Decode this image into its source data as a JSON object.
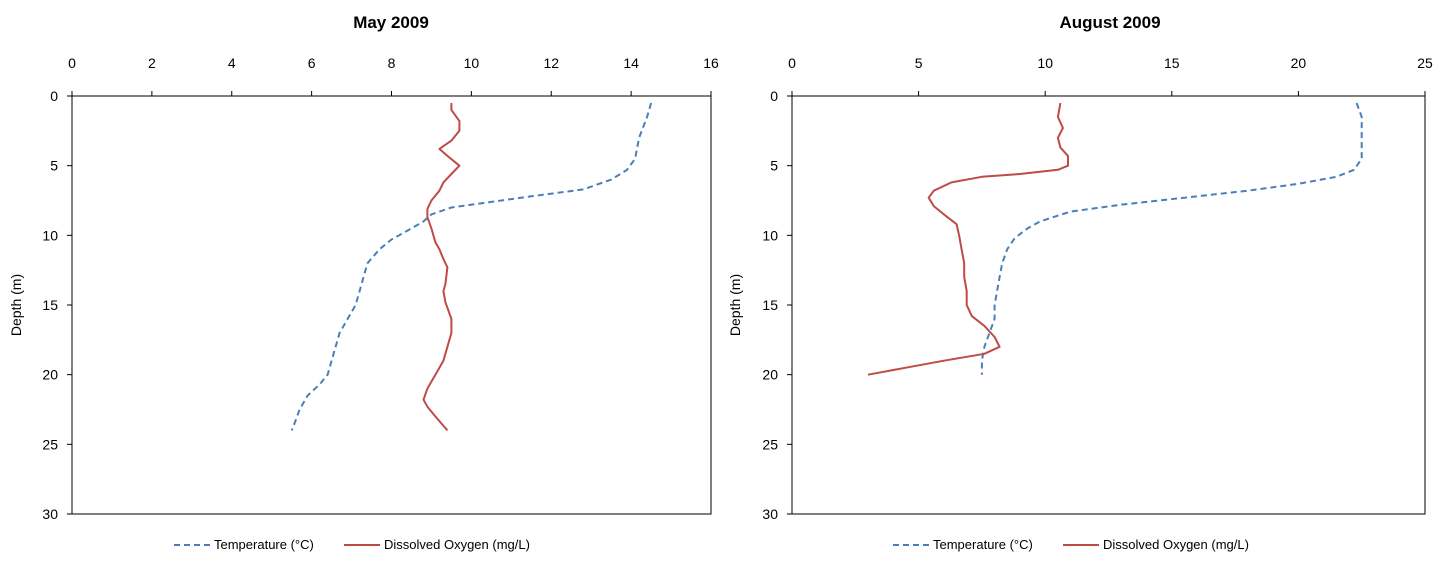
{
  "chart_data": [
    {
      "type": "line",
      "title": "May 2009",
      "ylabel": "Depth (m)",
      "xlabel": "",
      "xlim": [
        0,
        16
      ],
      "ylim": [
        0,
        30
      ],
      "x_axis_position": "top",
      "y_inverted": true,
      "xticks": [
        "0",
        "2",
        "4",
        "6",
        "8",
        "10",
        "12",
        "14",
        "16"
      ],
      "yticks": [
        "0",
        "5",
        "10",
        "15",
        "20",
        "25",
        "30"
      ],
      "grid": false,
      "legend_position": "bottom",
      "series": [
        {
          "name": "Temperature (°C)",
          "style": "dashed",
          "color": "#4a7ebb",
          "points": [
            [
              14.5,
              0.5
            ],
            [
              14.4,
              1.5
            ],
            [
              14.2,
              3
            ],
            [
              14.1,
              4.5
            ],
            [
              13.9,
              5.3
            ],
            [
              13.5,
              6
            ],
            [
              12.8,
              6.7
            ],
            [
              11.5,
              7.2
            ],
            [
              10.5,
              7.6
            ],
            [
              9.5,
              8
            ],
            [
              9.0,
              8.5
            ],
            [
              8.8,
              9
            ],
            [
              8.5,
              9.5
            ],
            [
              8.0,
              10.3
            ],
            [
              7.7,
              11
            ],
            [
              7.4,
              12
            ],
            [
              7.3,
              13
            ],
            [
              7.2,
              14
            ],
            [
              7.1,
              15
            ],
            [
              6.9,
              16
            ],
            [
              6.7,
              17
            ],
            [
              6.6,
              18
            ],
            [
              6.5,
              19
            ],
            [
              6.4,
              20
            ],
            [
              6.2,
              20.7
            ],
            [
              5.9,
              21.5
            ],
            [
              5.7,
              22.5
            ],
            [
              5.6,
              23.3
            ],
            [
              5.5,
              24
            ]
          ]
        },
        {
          "name": "Dissolved Oxygen (mg/L)",
          "style": "solid",
          "color": "#be4b48",
          "points": [
            [
              9.5,
              0.5
            ],
            [
              9.5,
              1
            ],
            [
              9.7,
              1.8
            ],
            [
              9.7,
              2.5
            ],
            [
              9.5,
              3.2
            ],
            [
              9.2,
              3.8
            ],
            [
              9.4,
              4.3
            ],
            [
              9.7,
              5
            ],
            [
              9.5,
              5.6
            ],
            [
              9.3,
              6.2
            ],
            [
              9.2,
              6.8
            ],
            [
              9.0,
              7.5
            ],
            [
              8.9,
              8.1
            ],
            [
              8.9,
              8.7
            ],
            [
              9.0,
              9.5
            ],
            [
              9.1,
              10.5
            ],
            [
              9.2,
              11
            ],
            [
              9.3,
              11.7
            ],
            [
              9.4,
              12.3
            ],
            [
              9.35,
              13.5
            ],
            [
              9.3,
              14
            ],
            [
              9.35,
              14.8
            ],
            [
              9.5,
              16
            ],
            [
              9.5,
              17
            ],
            [
              9.4,
              18
            ],
            [
              9.3,
              19
            ],
            [
              9.1,
              20
            ],
            [
              8.9,
              21
            ],
            [
              8.8,
              21.8
            ],
            [
              8.9,
              22.3
            ],
            [
              9.1,
              23
            ],
            [
              9.4,
              24
            ]
          ]
        }
      ]
    },
    {
      "type": "line",
      "title": "August 2009",
      "ylabel": "Depth (m)",
      "xlabel": "",
      "xlim": [
        0,
        25
      ],
      "ylim": [
        0,
        30
      ],
      "x_axis_position": "top",
      "y_inverted": true,
      "xticks": [
        "0",
        "5",
        "10",
        "15",
        "20",
        "25"
      ],
      "yticks": [
        "0",
        "5",
        "10",
        "15",
        "20",
        "25",
        "30"
      ],
      "grid": false,
      "legend_position": "bottom",
      "series": [
        {
          "name": "Temperature (°C)",
          "style": "dashed",
          "color": "#4a7ebb",
          "points": [
            [
              22.3,
              0.5
            ],
            [
              22.5,
              1.5
            ],
            [
              22.5,
              3
            ],
            [
              22.5,
              4.5
            ],
            [
              22.2,
              5.3
            ],
            [
              21.5,
              5.8
            ],
            [
              20.0,
              6.3
            ],
            [
              18.0,
              6.8
            ],
            [
              15.5,
              7.3
            ],
            [
              13.0,
              7.8
            ],
            [
              11.0,
              8.3
            ],
            [
              9.8,
              9
            ],
            [
              9.3,
              9.5
            ],
            [
              8.8,
              10.2
            ],
            [
              8.5,
              11
            ],
            [
              8.3,
              12
            ],
            [
              8.2,
              13
            ],
            [
              8.1,
              14
            ],
            [
              8.0,
              15
            ],
            [
              8.0,
              16
            ],
            [
              7.8,
              17
            ],
            [
              7.6,
              18
            ],
            [
              7.5,
              19
            ],
            [
              7.5,
              20
            ]
          ]
        },
        {
          "name": "Dissolved Oxygen (mg/L)",
          "style": "solid",
          "color": "#be4b48",
          "points": [
            [
              10.6,
              0.5
            ],
            [
              10.5,
              1.5
            ],
            [
              10.7,
              2.3
            ],
            [
              10.5,
              3
            ],
            [
              10.6,
              3.7
            ],
            [
              10.9,
              4.3
            ],
            [
              10.9,
              5
            ],
            [
              10.5,
              5.3
            ],
            [
              9.0,
              5.6
            ],
            [
              7.5,
              5.8
            ],
            [
              6.3,
              6.2
            ],
            [
              5.6,
              6.8
            ],
            [
              5.4,
              7.3
            ],
            [
              5.6,
              7.9
            ],
            [
              6.0,
              8.5
            ],
            [
              6.5,
              9.2
            ],
            [
              6.6,
              10
            ],
            [
              6.7,
              11
            ],
            [
              6.8,
              12
            ],
            [
              6.8,
              13
            ],
            [
              6.9,
              14
            ],
            [
              6.9,
              15
            ],
            [
              7.1,
              15.8
            ],
            [
              7.6,
              16.5
            ],
            [
              8.0,
              17.3
            ],
            [
              8.2,
              18
            ],
            [
              7.6,
              18.5
            ],
            [
              6.0,
              19
            ],
            [
              4.5,
              19.5
            ],
            [
              3.0,
              20
            ]
          ]
        }
      ]
    }
  ]
}
